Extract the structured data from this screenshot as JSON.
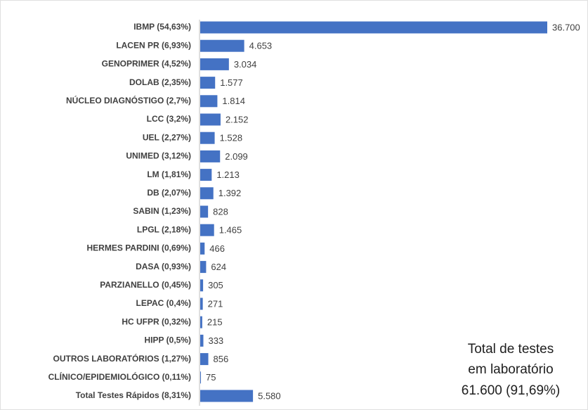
{
  "chart_data": {
    "type": "bar",
    "orientation": "horizontal",
    "color": "#4472c4",
    "categories": [
      "IBMP (54,63%)",
      "LACEN PR (6,93%)",
      "GENOPRIMER (4,52%)",
      "DOLAB (2,35%)",
      "NÚCLEO DIAGNÓSTIGO (2,7%)",
      "LCC (3,2%)",
      "UEL (2,27%)",
      "UNIMED (3,12%)",
      "LM (1,81%)",
      "DB (2,07%)",
      "SABIN (1,23%)",
      "LPGL (2,18%)",
      "HERMES PARDINI (0,69%)",
      "DASA (0,93%)",
      "PARZIANELLO (0,45%)",
      "LEPAC (0,4%)",
      "HC UFPR (0,32%)",
      "HIPP (0,5%)",
      "OUTROS LABORATÓRIOS (1,27%)",
      "CLÍNICO/EPIDEMIOLÓGICO (0,11%)",
      "Total Testes Rápidos (8,31%)"
    ],
    "values": [
      36700,
      4653,
      3034,
      1577,
      1814,
      2152,
      1528,
      2099,
      1213,
      1392,
      828,
      1465,
      466,
      624,
      305,
      271,
      215,
      333,
      856,
      75,
      5580
    ],
    "value_labels": [
      "36.700",
      "4.653",
      "3.034",
      "1.577",
      "1.814",
      "2.152",
      "1.528",
      "2.099",
      "1.213",
      "1.392",
      "828",
      "1.465",
      "466",
      "624",
      "305",
      "271",
      "215",
      "333",
      "856",
      "75",
      "5.580"
    ],
    "annotation": [
      "Total de testes",
      "em laboratório",
      "61.600 (91,69%)"
    ]
  }
}
